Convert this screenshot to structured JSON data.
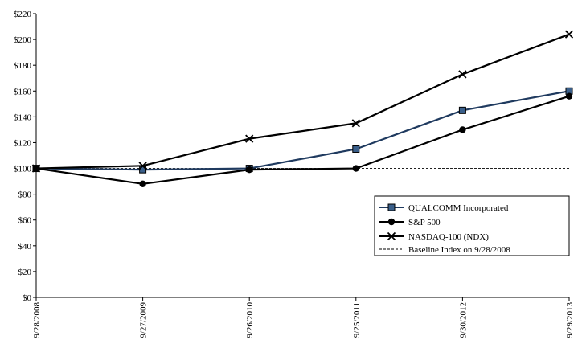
{
  "chart_data": {
    "type": "line",
    "title": "",
    "xlabel": "",
    "ylabel": "",
    "categories": [
      "9/28/2008",
      "9/27/2009",
      "9/26/2010",
      "9/25/2011",
      "9/30/2012",
      "9/29/2013"
    ],
    "ylim": [
      0,
      220
    ],
    "yticks": [
      0,
      20,
      40,
      60,
      80,
      100,
      120,
      140,
      160,
      180,
      200,
      220
    ],
    "ytick_labels": [
      "$0",
      "$20",
      "$40",
      "$60",
      "$80",
      "$100",
      "$120",
      "$140",
      "$160",
      "$180",
      "$200",
      "$220"
    ],
    "grid": false,
    "legend_position": "right",
    "series": [
      {
        "name": "QUALCOMM Incorporated",
        "marker": "square",
        "color": "#1f3a5f",
        "marker_fill": "#3a5f8a",
        "values": [
          100,
          99,
          100,
          115,
          145,
          160
        ]
      },
      {
        "name": "S&P 500",
        "marker": "circle",
        "color": "#000000",
        "marker_fill": "#000000",
        "values": [
          100,
          88,
          99,
          100,
          130,
          156
        ]
      },
      {
        "name": "NASDAQ-100 (NDX)",
        "marker": "x",
        "color": "#000000",
        "marker_fill": "#000000",
        "values": [
          100,
          102,
          123,
          135,
          173,
          204
        ]
      }
    ],
    "baseline": {
      "name": "Baseline Index on 9/28/2008",
      "value": 100,
      "style": "dashed",
      "color": "#000000"
    }
  }
}
